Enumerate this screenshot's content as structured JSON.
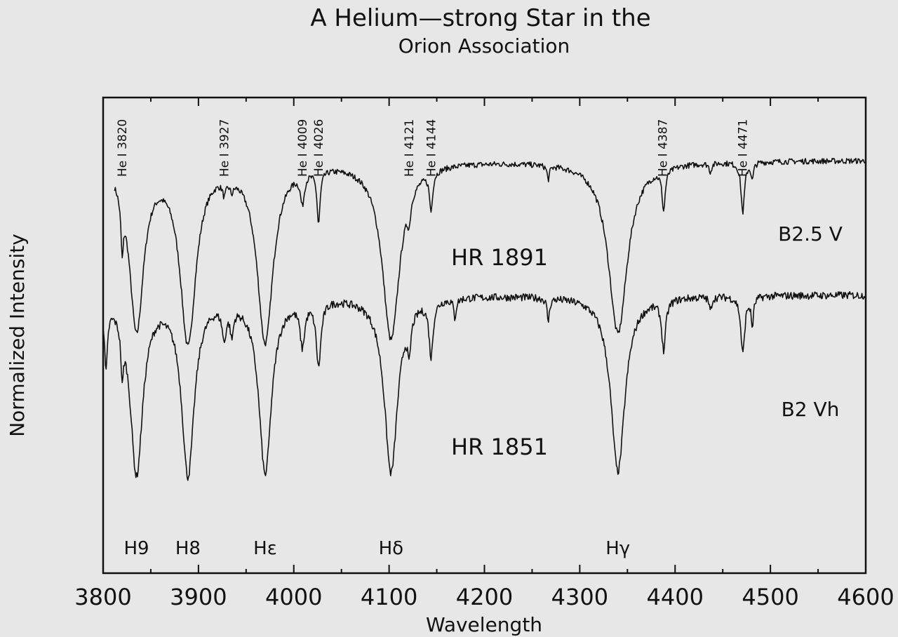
{
  "chart_data": {
    "type": "line",
    "title": "A Helium—strong Star in the",
    "subtitle": "Orion Association",
    "xlabel": "Wavelength",
    "ylabel": "Normalized Intensity",
    "xlim": [
      3800,
      4600
    ],
    "x_ticks": [
      3800,
      3900,
      4000,
      4100,
      4200,
      4300,
      4400,
      4500,
      4600
    ],
    "x_tick_labels": [
      "3800",
      "3900",
      "4000",
      "4100",
      "4200",
      "4300",
      "4400",
      "4500",
      "4600"
    ],
    "ylim": [
      0,
      1
    ],
    "grid": false,
    "line_color": "#111111",
    "background": "#e7e7e7",
    "series": [
      {
        "name": "HR 1891",
        "spectral_type": "B2.5 V",
        "continuum": 0.868,
        "x_start": 3812,
        "noise": 0.006,
        "lines": [
          {
            "x": 3820,
            "depth": 0.105,
            "width": 1.5
          },
          {
            "x": 3835,
            "depth": 0.348,
            "width": 9
          },
          {
            "x": 3889,
            "depth": 0.375,
            "width": 10
          },
          {
            "x": 3927,
            "depth": 0.028,
            "width": 2
          },
          {
            "x": 3935,
            "depth": 0.02,
            "width": 2
          },
          {
            "x": 3970,
            "depth": 0.375,
            "width": 10
          },
          {
            "x": 4009,
            "depth": 0.062,
            "width": 2.5
          },
          {
            "x": 4026,
            "depth": 0.11,
            "width": 2
          },
          {
            "x": 4102,
            "depth": 0.372,
            "width": 11
          },
          {
            "x": 4121,
            "depth": 0.045,
            "width": 2
          },
          {
            "x": 4144,
            "depth": 0.08,
            "width": 2
          },
          {
            "x": 4267,
            "depth": 0.028,
            "width": 1.5
          },
          {
            "x": 4340,
            "depth": 0.362,
            "width": 12
          },
          {
            "x": 4388,
            "depth": 0.085,
            "width": 2
          },
          {
            "x": 4437,
            "depth": 0.018,
            "width": 1.5
          },
          {
            "x": 4471,
            "depth": 0.105,
            "width": 2.2
          },
          {
            "x": 4481,
            "depth": 0.035,
            "width": 1.5
          }
        ]
      },
      {
        "name": "HR 1851",
        "spectral_type": "B2 Vh",
        "continuum": 0.585,
        "x_start": 3800,
        "noise": 0.008,
        "lines": [
          {
            "x": 3803,
            "depth": 0.135,
            "width": 2
          },
          {
            "x": 3820,
            "depth": 0.1,
            "width": 1.5
          },
          {
            "x": 3835,
            "depth": 0.37,
            "width": 8
          },
          {
            "x": 3889,
            "depth": 0.37,
            "width": 8
          },
          {
            "x": 3927,
            "depth": 0.065,
            "width": 2.5
          },
          {
            "x": 3935,
            "depth": 0.055,
            "width": 2
          },
          {
            "x": 3970,
            "depth": 0.37,
            "width": 8
          },
          {
            "x": 4009,
            "depth": 0.088,
            "width": 3
          },
          {
            "x": 4026,
            "depth": 0.135,
            "width": 3
          },
          {
            "x": 4102,
            "depth": 0.37,
            "width": 8.5
          },
          {
            "x": 4121,
            "depth": 0.075,
            "width": 2
          },
          {
            "x": 4144,
            "depth": 0.115,
            "width": 2.5
          },
          {
            "x": 4169,
            "depth": 0.04,
            "width": 1.5
          },
          {
            "x": 4267,
            "depth": 0.048,
            "width": 1.5
          },
          {
            "x": 4340,
            "depth": 0.37,
            "width": 9
          },
          {
            "x": 4388,
            "depth": 0.105,
            "width": 2.5
          },
          {
            "x": 4437,
            "depth": 0.03,
            "width": 1.5
          },
          {
            "x": 4471,
            "depth": 0.12,
            "width": 2.5
          },
          {
            "x": 4481,
            "depth": 0.06,
            "width": 1.5
          }
        ]
      }
    ],
    "he_line_labels": [
      {
        "text": "He I 3820",
        "x": 3820
      },
      {
        "text": "He I 3927",
        "x": 3927
      },
      {
        "text": "He I 4009",
        "x": 4009
      },
      {
        "text": "He I 4026",
        "x": 4026
      },
      {
        "text": "He I 4121",
        "x": 4121
      },
      {
        "text": "He I 4144",
        "x": 4144
      },
      {
        "text": "He I 4387",
        "x": 4387
      },
      {
        "text": "He I 4471",
        "x": 4471
      }
    ],
    "h_line_labels": [
      {
        "text": "H9",
        "x": 3835
      },
      {
        "text": "H8",
        "x": 3889
      },
      {
        "text": "Hε",
        "x": 3970
      },
      {
        "text": "Hδ",
        "x": 4102
      },
      {
        "text": "Hγ",
        "x": 4340
      }
    ]
  }
}
